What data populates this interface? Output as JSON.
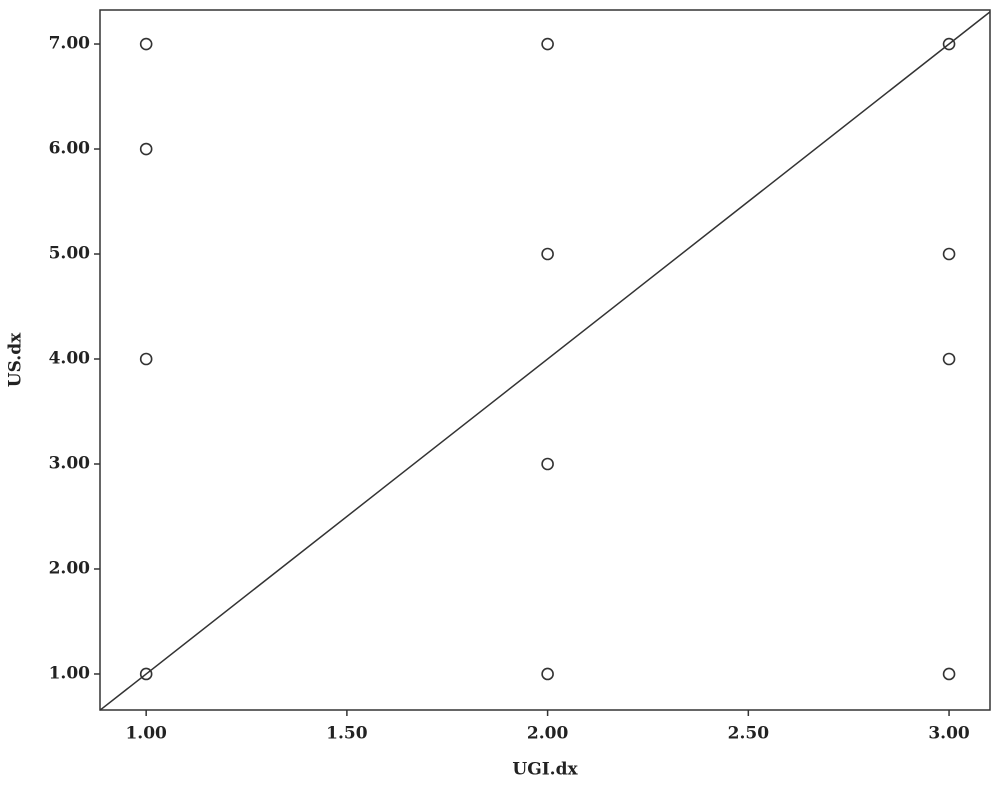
{
  "chart_data": {
    "type": "scatter",
    "x_label": "UGI.dx",
    "y_label": "US.dx",
    "x": [
      1,
      1,
      1,
      1,
      2,
      2,
      2,
      2,
      3,
      3,
      3,
      3
    ],
    "y": [
      7,
      6,
      4,
      1,
      7,
      5,
      3,
      1,
      7,
      5,
      4,
      1
    ],
    "color": "#333333",
    "line": {
      "x": [
        0.885,
        3.102
      ],
      "y": [
        0.655,
        7.306
      ]
    },
    "xlim": [
      0.885,
      3.102
    ],
    "ylim": [
      0.657,
      7.324
    ],
    "xticks": [
      {
        "value": 1,
        "label": "1.00"
      },
      {
        "value": 1.5,
        "label": "1.50"
      },
      {
        "value": 2,
        "label": "2.00"
      },
      {
        "value": 2.5,
        "label": "2.50"
      },
      {
        "value": 3,
        "label": "3.00"
      }
    ],
    "yticks": [
      {
        "value": 1,
        "label": "1.00"
      },
      {
        "value": 2,
        "label": "2.00"
      },
      {
        "value": 3,
        "label": "3.00"
      },
      {
        "value": 4,
        "label": "4.00"
      },
      {
        "value": 5,
        "label": "5.00"
      },
      {
        "value": 6,
        "label": "6.00"
      },
      {
        "value": 7,
        "label": "7.00"
      }
    ],
    "grid": false
  }
}
